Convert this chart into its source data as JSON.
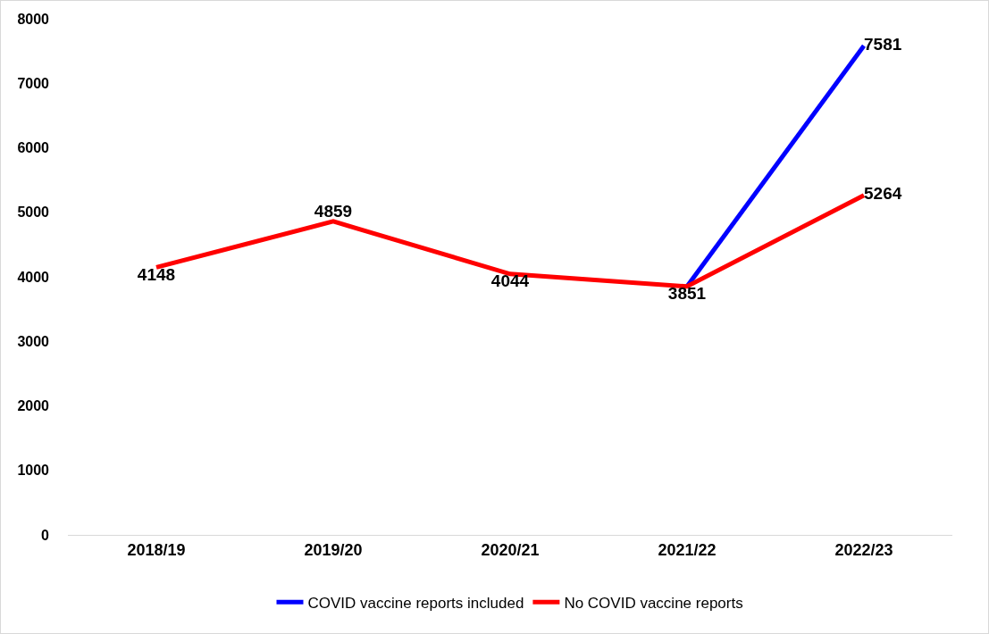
{
  "chart_data": {
    "type": "line",
    "categories": [
      "2018/19",
      "2019/20",
      "2020/21",
      "2021/22",
      "2022/23"
    ],
    "series": [
      {
        "name": "COVID vaccine reports included",
        "color": "#0000ff",
        "values": [
          null,
          null,
          null,
          3851,
          7581
        ],
        "value_labels": [
          null,
          null,
          null,
          null,
          "7581"
        ]
      },
      {
        "name": "No COVID vaccine reports",
        "color": "#ff0000",
        "values": [
          4148,
          4859,
          4044,
          3851,
          5264
        ],
        "value_labels": [
          "4148",
          "4859",
          "4044",
          "3851",
          "5264"
        ]
      }
    ],
    "ylim": [
      0,
      8000
    ],
    "yticks": [
      0,
      1000,
      2000,
      3000,
      4000,
      5000,
      6000,
      7000,
      8000
    ],
    "grid": false,
    "legend": "bottom",
    "marker": "none",
    "line_style": "solid"
  }
}
